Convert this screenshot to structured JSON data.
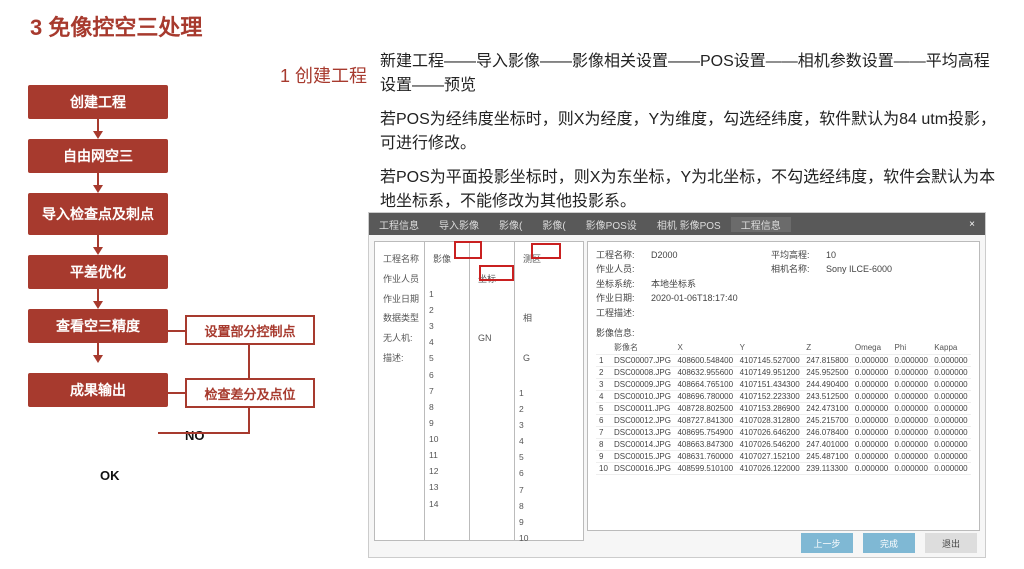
{
  "title": "3  免像控空三处理",
  "subTitle": "1 创建工程",
  "desc": {
    "p1": "新建工程——导入影像——影像相关设置——POS设置——相机参数设置——平均高程设置——预览",
    "p2": "若POS为经纬度坐标时，则X为经度，Y为维度，勾选经纬度，软件默认为84 utm投影，可进行修改。",
    "p3": "若POS为平面投影坐标时，则X为东坐标，Y为北坐标，不勾选经纬度，软件会默认为本地坐标系，不能修改为其他投影系。"
  },
  "flow": {
    "b1": "创建工程",
    "b2": "自由网空三",
    "b3": "导入检查点及刺点",
    "b4": "平差优化",
    "b5": "查看空三精度",
    "b6": "成果输出",
    "s1": "设置部分控制点",
    "s2": "检查差分及点位",
    "ok": "OK",
    "no": "NO"
  },
  "tabs": [
    "工程信息",
    "导入影像",
    "影像(",
    "影像(",
    "影像POS设",
    "相机 影像POS",
    "工程信息"
  ],
  "leftLabels": {
    "l1": "工程名称",
    "l2": "作业人员",
    "l3": "作业日期",
    "l4": "数据类型",
    "l5": "无人机:",
    "l6": "描述:"
  },
  "panelLabels": {
    "a": "影像",
    "b": "坐标",
    "c": "测区",
    "d": "GN",
    "e": "相",
    "f": "G"
  },
  "info": {
    "r1a": "工程名称:",
    "r1b": "D2000",
    "r1c": "平均高程:",
    "r1d": "10",
    "r2a": "作业人员:",
    "r2c": "相机名称:",
    "r2d": "Sony ILCE-6000",
    "r3a": "坐标系统:",
    "r3b": "本地坐标系",
    "r4a": "作业日期:",
    "r4b": "2020-01-06T18:17:40",
    "r5a": "工程描述:",
    "tblTitle": "影像信息:"
  },
  "cols": [
    "",
    "影像名",
    "X",
    "Y",
    "Z",
    "Omega",
    "Phi",
    "Kappa"
  ],
  "rows": [
    [
      "1",
      "DSC00007.JPG",
      "408600.548400",
      "4107145.527000",
      "247.815800",
      "0.000000",
      "0.000000",
      "0.000000"
    ],
    [
      "2",
      "DSC00008.JPG",
      "408632.955600",
      "4107149.951200",
      "245.952500",
      "0.000000",
      "0.000000",
      "0.000000"
    ],
    [
      "3",
      "DSC00009.JPG",
      "408664.765100",
      "4107151.434300",
      "244.490400",
      "0.000000",
      "0.000000",
      "0.000000"
    ],
    [
      "4",
      "DSC00010.JPG",
      "408696.780000",
      "4107152.223300",
      "243.512500",
      "0.000000",
      "0.000000",
      "0.000000"
    ],
    [
      "5",
      "DSC00011.JPG",
      "408728.802500",
      "4107153.286900",
      "242.473100",
      "0.000000",
      "0.000000",
      "0.000000"
    ],
    [
      "6",
      "DSC00012.JPG",
      "408727.841300",
      "4107028.312800",
      "245.215700",
      "0.000000",
      "0.000000",
      "0.000000"
    ],
    [
      "7",
      "DSC00013.JPG",
      "408695.754900",
      "4107026.646200",
      "246.078400",
      "0.000000",
      "0.000000",
      "0.000000"
    ],
    [
      "8",
      "DSC00014.JPG",
      "408663.847300",
      "4107026.546200",
      "247.401000",
      "0.000000",
      "0.000000",
      "0.000000"
    ],
    [
      "9",
      "DSC00015.JPG",
      "408631.760000",
      "4107027.152100",
      "245.487100",
      "0.000000",
      "0.000000",
      "0.000000"
    ],
    [
      "10",
      "DSC00016.JPG",
      "408599.510100",
      "4107026.122000",
      "239.113300",
      "0.000000",
      "0.000000",
      "0.000000"
    ]
  ],
  "btns": {
    "prev": "上一步",
    "done": "完成",
    "exit": "退出"
  }
}
